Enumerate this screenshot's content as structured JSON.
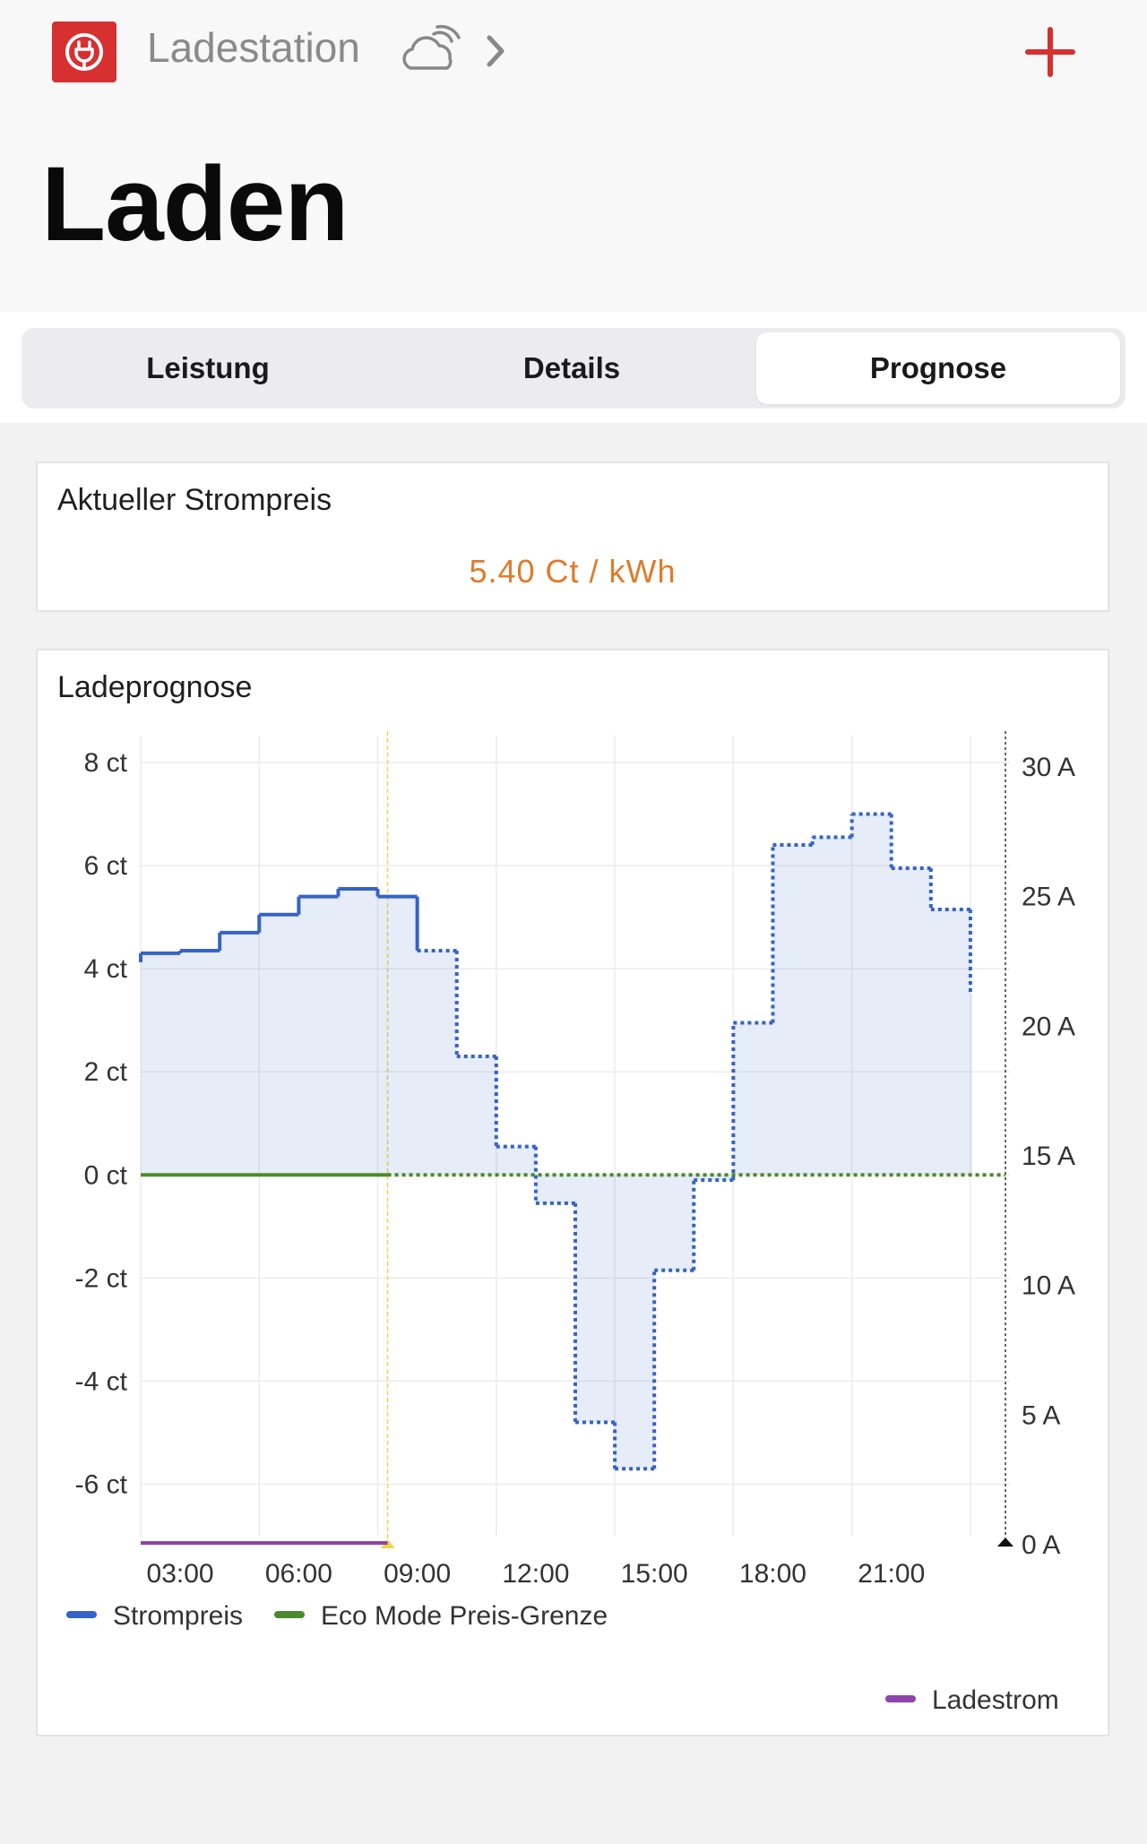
{
  "header": {
    "breadcrumb": "Ladestation",
    "app_icon": "plug-icon",
    "weather_icon": "cloud-icon",
    "add_icon": "plus-icon",
    "accent": "#d63031"
  },
  "page_title": "Laden",
  "tabs": [
    {
      "label": "Leistung",
      "active": false
    },
    {
      "label": "Details",
      "active": false
    },
    {
      "label": "Prognose",
      "active": true
    }
  ],
  "price_card": {
    "title": "Aktueller Strompreis",
    "value": "5.40 Ct / kWh",
    "value_color": "#e07b2a"
  },
  "forecast_card": {
    "title": "Ladeprognose"
  },
  "chart_data": {
    "type": "line",
    "title": "Ladeprognose",
    "x_ticks": [
      "03:00",
      "06:00",
      "09:00",
      "12:00",
      "15:00",
      "18:00",
      "21:00"
    ],
    "y_left_ticks": [
      "8 ct",
      "6 ct",
      "4 ct",
      "2 ct",
      "0 ct",
      "-2 ct",
      "-4 ct",
      "-6 ct"
    ],
    "y_right_ticks": [
      "30 A",
      "25 A",
      "20 A",
      "15 A",
      "10 A",
      "5 A",
      "0 A"
    ],
    "ylim_left": [
      -7,
      8
    ],
    "ylim_right": [
      0,
      30
    ],
    "now": "08:15",
    "series": [
      {
        "name": "Strompreis",
        "color": "#3563c7",
        "style": "step",
        "x": [
          "02:00",
          "03:00",
          "04:00",
          "05:00",
          "06:00",
          "07:00",
          "08:00",
          "09:00",
          "10:00",
          "11:00",
          "12:00",
          "13:00",
          "14:00",
          "15:00",
          "16:00",
          "17:00",
          "18:00",
          "19:00",
          "20:00",
          "21:00",
          "22:00",
          "23:00"
        ],
        "values": [
          4.3,
          4.35,
          4.7,
          5.05,
          5.4,
          5.55,
          5.4,
          4.35,
          2.3,
          0.55,
          -0.55,
          -4.8,
          -5.7,
          -1.85,
          -0.1,
          2.95,
          6.4,
          6.55,
          7.0,
          5.95,
          5.15,
          3.5
        ]
      },
      {
        "name": "Eco Mode Preis-Grenze",
        "color": "#4a8a2c",
        "x": [
          "02:00",
          "24:00"
        ],
        "values": [
          0,
          0
        ]
      },
      {
        "name": "Ladestrom",
        "color": "#8e44ad",
        "axis": "right",
        "x": [
          "02:00",
          "08:15"
        ],
        "values": [
          0,
          0
        ]
      }
    ],
    "legend": [
      {
        "label": "Strompreis",
        "color": "#3563c7"
      },
      {
        "label": "Eco Mode Preis-Grenze",
        "color": "#4a8a2c"
      },
      {
        "label": "Ladestrom",
        "color": "#8e44ad"
      }
    ],
    "grid": true
  }
}
